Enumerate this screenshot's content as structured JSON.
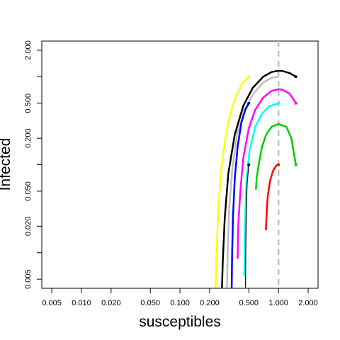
{
  "chart_data": {
    "type": "line",
    "xlabel": "susceptibles",
    "ylabel": "Infected",
    "xlog": true,
    "ylog": true,
    "xlim": [
      0.00396,
      2.52
    ],
    "ylim": [
      0.00394,
      2.54
    ],
    "xticks": [
      0.005,
      {
        "value": 0.01,
        "label": "0.010"
      },
      {
        "value": 0.02,
        "label": "0.020"
      },
      {
        "value": 0.05,
        "label": "0.050"
      },
      {
        "value": 0.1,
        "label": "0.100"
      },
      {
        "value": 0.2,
        "label": "0.200"
      },
      {
        "value": 0.5,
        "label": "0.500"
      },
      {
        "value": 1,
        "label": "1.000"
      },
      {
        "value": 2,
        "label": "2.000"
      }
    ],
    "yticks": [
      0.005,
      {
        "value": 0.02,
        "label": "0.020"
      },
      {
        "value": 0.05,
        "label": "0.050"
      },
      {
        "value": 0.2,
        "label": "0.200"
      },
      {
        "value": 0.5,
        "label": "0.500"
      },
      {
        "value": 2,
        "label": "2.000"
      }
    ],
    "yminor_ticks": [
      0.01,
      0.1,
      1
    ],
    "vline": 1,
    "vline_color": "#bebebe",
    "series": [
      {
        "color": "#ff0000",
        "marker": true,
        "line_width": 2.5,
        "x": [
          1,
          0.95,
          0.88,
          0.82,
          0.78,
          0.76,
          0.745
        ],
        "values": [
          0.1,
          0.098,
          0.085,
          0.065,
          0.045,
          0.03,
          0.018
        ]
      },
      {
        "color": "#00cd00",
        "marker": true,
        "line_width": 2.5,
        "x": [
          1.5,
          1.35,
          1.2,
          1,
          0.85,
          0.75,
          0.68,
          0.63,
          0.6,
          0.59
        ],
        "values": [
          0.1,
          0.2,
          0.27,
          0.29,
          0.27,
          0.22,
          0.16,
          0.1,
          0.07,
          0.052
        ]
      },
      {
        "color": "#00ffff",
        "marker": true,
        "line_width": 2.5,
        "x": [
          1,
          0.8,
          0.68,
          0.58,
          0.51,
          0.475,
          0.46,
          0.45
        ],
        "values": [
          0.5,
          0.46,
          0.38,
          0.27,
          0.15,
          0.07,
          0.028,
          0.0055
        ]
      },
      {
        "color": "#ff00ff",
        "marker": true,
        "line_width": 2.5,
        "x": [
          1.5,
          1.3,
          1.1,
          1,
          0.85,
          0.7,
          0.58,
          0.5,
          0.44,
          0.41,
          0.39,
          0.385
        ],
        "values": [
          0.5,
          0.64,
          0.71,
          0.72,
          0.69,
          0.58,
          0.42,
          0.26,
          0.12,
          0.05,
          0.02,
          0.0085
        ]
      },
      {
        "color": "#bebebe",
        "marker": false,
        "line_width": 2.5,
        "x": [
          1,
          0.85,
          0.7,
          0.56,
          0.45,
          0.38,
          0.34,
          0.315,
          0.305,
          0.3
        ],
        "values": [
          1,
          0.97,
          0.86,
          0.65,
          0.42,
          0.22,
          0.09,
          0.03,
          0.01,
          0.004
        ]
      },
      {
        "color": "#000000",
        "marker": true,
        "line_width": 2.5,
        "x": [
          1.5,
          1.3,
          1.1,
          1,
          0.85,
          0.7,
          0.55,
          0.44,
          0.36,
          0.31,
          0.285,
          0.272,
          0.267
        ],
        "values": [
          1,
          1.1,
          1.16,
          1.17,
          1.13,
          1,
          0.75,
          0.47,
          0.22,
          0.08,
          0.025,
          0.008,
          0.004
        ]
      },
      {
        "color": "#0000ff",
        "marker": true,
        "line_width": 2.5,
        "x": [
          0.5,
          0.46,
          0.42,
          0.385,
          0.36,
          0.345,
          0.338,
          0.335
        ],
        "values": [
          0.5,
          0.42,
          0.3,
          0.16,
          0.07,
          0.025,
          0.009,
          0.004
        ]
      },
      {
        "color": "#ffff00",
        "marker": true,
        "line_width": 2.5,
        "x": [
          0.5,
          0.43,
          0.37,
          0.32,
          0.285,
          0.26,
          0.245,
          0.235,
          0.23
        ],
        "values": [
          1,
          0.85,
          0.6,
          0.36,
          0.18,
          0.08,
          0.03,
          0.01,
          0.004
        ]
      },
      {
        "color": "#000000",
        "marker": true,
        "line_width": 1.2,
        "x": [
          0.5,
          0.48,
          0.47,
          0.465,
          0.463
        ],
        "values": [
          0.1,
          0.06,
          0.025,
          0.01,
          0.004
        ]
      }
    ]
  }
}
